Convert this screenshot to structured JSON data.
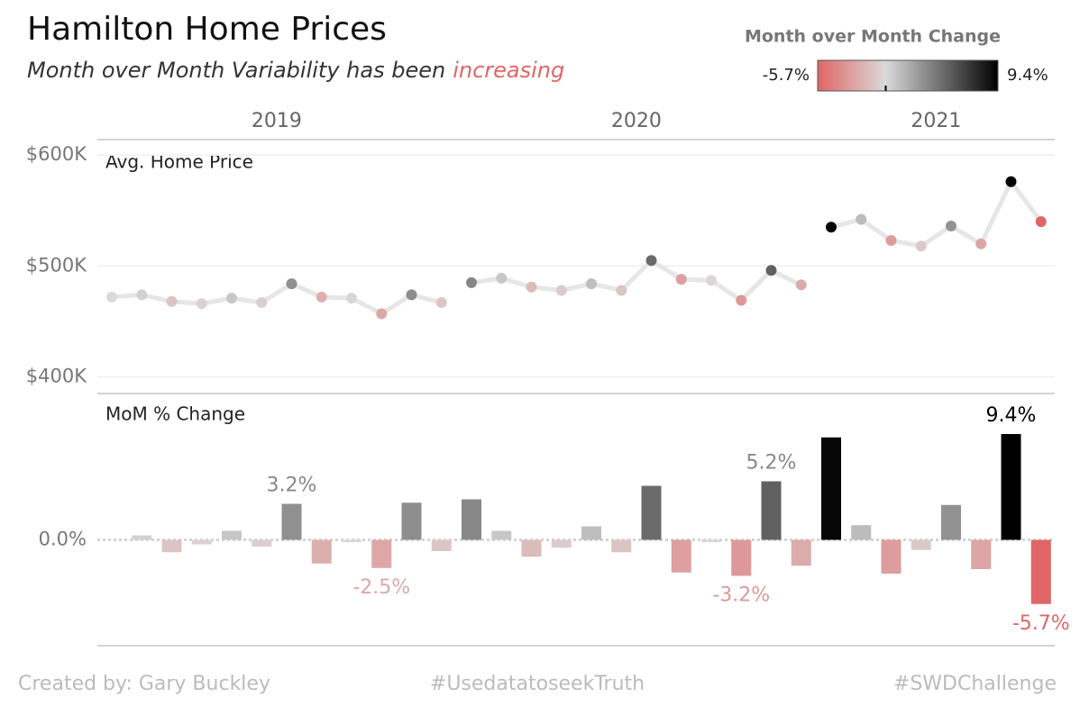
{
  "title": "Hamilton Home Prices",
  "subtitle": {
    "text": "Month over Month Variability has been",
    "highlight": "increasing",
    "highlight_color": "#e06666"
  },
  "legend": {
    "title": "Month over Month Change",
    "min": {
      "value": -5.7,
      "label": "-5.7%"
    },
    "max": {
      "value": 9.4,
      "label": "9.4%"
    },
    "low_color": "#e06666",
    "mid_color": "#dadada",
    "high_color": "#000000"
  },
  "footer": {
    "left": "Created by: Gary Buckley",
    "center": "#UsedatatoseekTruth",
    "right": "#SWDChallenge"
  },
  "chart_data": [
    {
      "type": "line",
      "title": "Avg. Home Price",
      "categories": [
        "2019",
        "2019",
        "2019",
        "2019",
        "2019",
        "2019",
        "2019",
        "2019",
        "2019",
        "2019",
        "2019",
        "2019",
        "2020",
        "2020",
        "2020",
        "2020",
        "2020",
        "2020",
        "2020",
        "2020",
        "2020",
        "2020",
        "2020",
        "2020",
        "2021",
        "2021",
        "2021",
        "2021",
        "2021",
        "2021",
        "2021",
        "2021"
      ],
      "values": [
        472000,
        474000,
        468000,
        466000,
        471000,
        467000,
        484000,
        472000,
        471000,
        457000,
        474000,
        467000,
        485000,
        489000,
        481000,
        478000,
        484000,
        478000,
        505000,
        488000,
        487000,
        469000,
        496000,
        483000,
        535000,
        542000,
        523000,
        518000,
        536000,
        520000,
        576000,
        540000
      ],
      "line_color": "#e6e6e6",
      "ylim": [
        385000,
        614000
      ],
      "yticks": [
        {
          "value": 400000,
          "label": "$400K"
        },
        {
          "value": 500000,
          "label": "$500K"
        },
        {
          "value": 600000,
          "label": "$600K"
        }
      ],
      "grid": true
    },
    {
      "type": "bar",
      "title": "MoM % Change",
      "values": [
        null,
        0.4,
        -1.1,
        -0.4,
        0.8,
        -0.6,
        3.2,
        -2.1,
        -0.2,
        -2.5,
        3.3,
        -1.0,
        3.6,
        0.8,
        -1.5,
        -0.7,
        1.2,
        -1.1,
        4.8,
        -2.9,
        -0.2,
        -3.2,
        5.2,
        -2.3,
        9.1,
        1.3,
        -3.0,
        -0.9,
        3.1,
        -2.6,
        9.4,
        -5.7
      ],
      "value_labels": [
        null,
        null,
        null,
        null,
        null,
        null,
        "3.2%",
        null,
        null,
        "-2.5%",
        null,
        null,
        null,
        null,
        null,
        null,
        null,
        null,
        null,
        null,
        null,
        "-3.2%",
        "5.2%",
        null,
        null,
        null,
        null,
        null,
        null,
        null,
        "9.4%",
        "-5.7%"
      ],
      "ylim": [
        -9.4,
        13.0
      ],
      "yticks": [
        {
          "value": 0,
          "label": "0.0%"
        }
      ]
    }
  ]
}
